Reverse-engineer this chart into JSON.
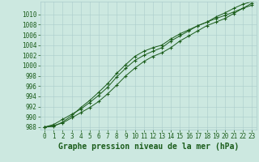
{
  "title": "Graphe pression niveau de la mer (hPa)",
  "x_values": [
    0,
    1,
    2,
    3,
    4,
    5,
    6,
    7,
    8,
    9,
    10,
    11,
    12,
    13,
    14,
    15,
    16,
    17,
    18,
    19,
    20,
    21,
    22,
    23
  ],
  "line1": [
    988,
    988.3,
    988.8,
    989.8,
    990.8,
    991.8,
    993.0,
    994.5,
    996.2,
    998.0,
    999.5,
    1000.8,
    1001.8,
    1002.5,
    1003.5,
    1004.8,
    1005.8,
    1006.8,
    1007.8,
    1008.5,
    1009.2,
    1010.2,
    1011.2,
    1012.2
  ],
  "line2": [
    988,
    988.5,
    989.5,
    990.5,
    991.5,
    992.8,
    994.2,
    995.8,
    997.8,
    999.5,
    1001.0,
    1002.0,
    1002.8,
    1003.5,
    1004.8,
    1005.8,
    1006.8,
    1007.8,
    1008.5,
    1009.5,
    1010.3,
    1011.2,
    1012.0,
    1012.5
  ],
  "line3": [
    988,
    988.1,
    989.0,
    990.2,
    991.8,
    993.2,
    994.8,
    996.5,
    998.5,
    1000.2,
    1001.8,
    1002.8,
    1003.5,
    1004.0,
    1005.2,
    1006.2,
    1007.0,
    1007.8,
    1008.5,
    1009.2,
    1009.8,
    1010.5,
    1011.2,
    1011.8
  ],
  "ylim": [
    987.5,
    1012.5
  ],
  "yticks": [
    988,
    990,
    992,
    994,
    996,
    998,
    1000,
    1002,
    1004,
    1006,
    1008,
    1010
  ],
  "xlim": [
    -0.5,
    23.5
  ],
  "xticks": [
    0,
    1,
    2,
    3,
    4,
    5,
    6,
    7,
    8,
    9,
    10,
    11,
    12,
    13,
    14,
    15,
    16,
    17,
    18,
    19,
    20,
    21,
    22,
    23
  ],
  "line_color": "#1a5c1a",
  "bg_color": "#cce8e0",
  "grid_color": "#aacccc",
  "title_color": "#1a5c1a",
  "title_fontsize": 7,
  "tick_fontsize": 5.5,
  "linewidth": 0.7,
  "markersize": 3.5,
  "markeredgewidth": 0.8
}
